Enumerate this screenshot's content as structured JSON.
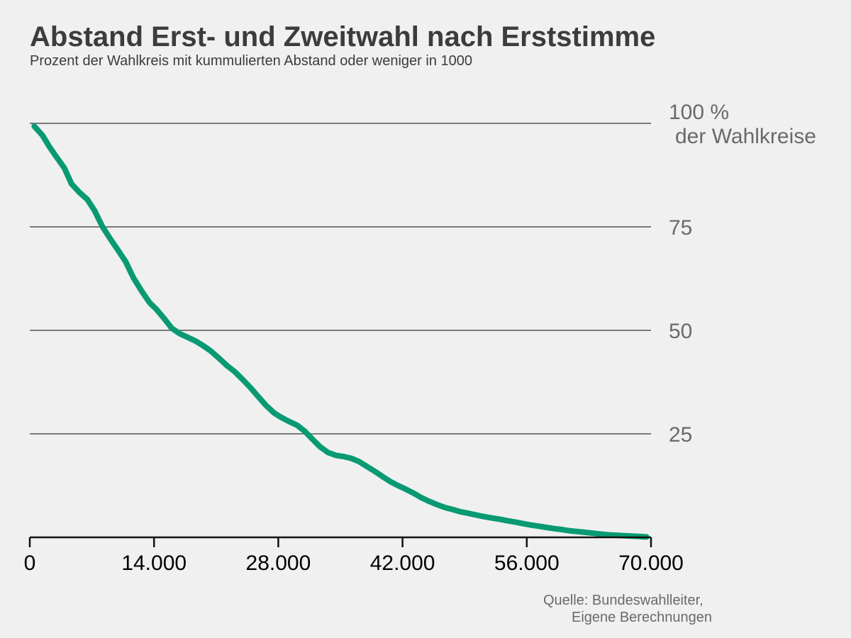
{
  "chart_data": {
    "type": "line",
    "title": "Abstand Erst- und Zweitwahl nach Erststimme",
    "subtitle": "Prozent der Wahlkreis mit kummulierten Abstand oder weniger in 1000",
    "xlabel": "",
    "ylabel": "",
    "xlim": [
      0,
      70000
    ],
    "ylim": [
      0,
      100
    ],
    "x_ticks": [
      0,
      14000,
      28000,
      42000,
      56000,
      70000
    ],
    "x_tick_labels": [
      "0",
      "14.000",
      "28.000",
      "42.000",
      "56.000",
      "70.000"
    ],
    "y_ticks": [
      25,
      50,
      75,
      100
    ],
    "y_tick_labels": [
      "25",
      "50",
      "75",
      "100 %"
    ],
    "y_unit_label": "der Wahlkreise",
    "grid": true,
    "series": [
      {
        "color": "#0a9a73",
        "x": [
          500,
          1400,
          2200,
          3000,
          3900,
          4700,
          5600,
          6500,
          7300,
          8200,
          9100,
          10000,
          10800,
          11700,
          12600,
          13500,
          14300,
          15200,
          16000,
          16900,
          17800,
          18700,
          19600,
          20400,
          21300,
          22200,
          23100,
          24000,
          24800,
          25700,
          26600,
          27500,
          28300,
          29200,
          30100,
          31000,
          31900,
          32700,
          33600,
          34500,
          35400,
          36200,
          37100,
          38000,
          38900,
          39800,
          40600,
          41500,
          42400,
          43300,
          44100,
          45000,
          45900,
          46800,
          47700,
          48500,
          49400,
          50300,
          51200,
          52000,
          52900,
          53800,
          54700,
          55600,
          56400,
          57300,
          58200,
          59100,
          59900,
          60800,
          61700,
          62600,
          63500,
          64300,
          65200,
          66100,
          67000,
          67800,
          68700,
          69500
        ],
        "y": [
          99.3,
          97.2,
          94.4,
          91.9,
          89.2,
          85.4,
          83.3,
          81.6,
          78.9,
          75.0,
          72.0,
          69.2,
          66.6,
          62.6,
          59.5,
          56.7,
          55.0,
          52.7,
          50.5,
          49.2,
          48.3,
          47.4,
          46.2,
          45.0,
          43.3,
          41.5,
          40.0,
          38.1,
          36.3,
          34.1,
          31.9,
          30.1,
          29.0,
          28.0,
          27.1,
          25.6,
          23.6,
          21.9,
          20.5,
          19.8,
          19.5,
          19.1,
          18.3,
          17.1,
          15.9,
          14.6,
          13.5,
          12.5,
          11.6,
          10.6,
          9.6,
          8.7,
          7.9,
          7.2,
          6.7,
          6.2,
          5.8,
          5.4,
          5.0,
          4.7,
          4.4,
          4.0,
          3.7,
          3.3,
          3.0,
          2.7,
          2.4,
          2.1,
          1.9,
          1.6,
          1.4,
          1.2,
          1.0,
          0.8,
          0.6,
          0.5,
          0.4,
          0.3,
          0.2,
          0.1
        ]
      }
    ]
  },
  "source": {
    "line1": "Quelle: Bundeswahlleiter,",
    "line2": "Eigene Berechnungen"
  },
  "colors": {
    "background": "#f0f0f0",
    "gridline": "#7a7a7a",
    "axis": "#111111",
    "y_tick_text": "#6a6a6a",
    "x_tick_text": "#000000",
    "series": "#0a9a73"
  }
}
